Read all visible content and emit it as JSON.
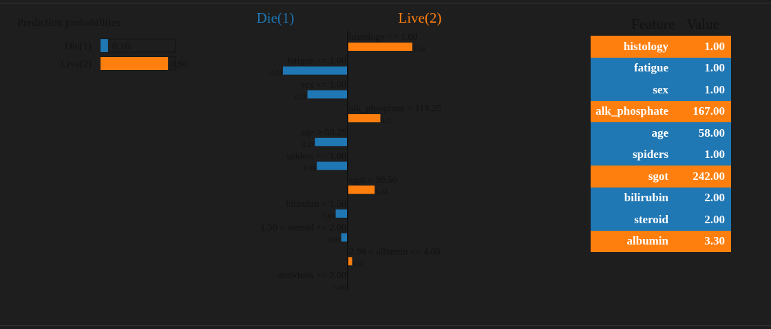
{
  "colors": {
    "negative": "#1f77b4",
    "positive": "#ff7f0e",
    "background": "#1e1e1e",
    "text_dark": "#111111",
    "text_header_blue": "#1f77b4",
    "text_header_orange": "#ff7f0e"
  },
  "chart_data": [
    {
      "type": "bar",
      "title": "Prediction probabilities",
      "orientation": "horizontal",
      "categories": [
        "Die(1)",
        "Live(2)"
      ],
      "values": [
        0.1,
        0.9
      ],
      "value_labels": [
        "0.10",
        "0.90"
      ],
      "xlim": [
        0,
        1
      ],
      "series_colors": [
        "#1f77b4",
        "#ff7f0e"
      ]
    },
    {
      "type": "bar",
      "orientation": "horizontal",
      "class_labels": {
        "negative": "Die(1)",
        "positive": "Live(2)"
      },
      "bars": [
        {
          "condition": "histology <= 1.00",
          "weight": 0.34,
          "value_label": "0.34",
          "side": "positive"
        },
        {
          "condition": "fatigue <= 1.00",
          "weight": 0.34,
          "value_label": "0.34",
          "side": "negative"
        },
        {
          "condition": "sex <= 1.00",
          "weight": 0.21,
          "value_label": "0.21",
          "side": "negative"
        },
        {
          "condition": "alk_phosphate > 119.25",
          "weight": 0.17,
          "value_label": "0.17",
          "side": "positive"
        },
        {
          "condition": "age > 50.25",
          "weight": 0.17,
          "value_label": "0.17",
          "side": "negative"
        },
        {
          "condition": "spiders <= 1.00",
          "weight": 0.16,
          "value_label": "0.16",
          "side": "negative"
        },
        {
          "condition": "sgot > 90.50",
          "weight": 0.14,
          "value_label": "0.14",
          "side": "positive"
        },
        {
          "condition": "bilirubin > 1.50",
          "weight": 0.06,
          "value_label": "0.06",
          "side": "negative"
        },
        {
          "condition": "1.50 < steroid <= 2.00",
          "weight": 0.03,
          "value_label": "0.03",
          "side": "negative"
        },
        {
          "condition": "2.98 < albumin <= 4.00",
          "weight": 0.02,
          "value_label": "0.02",
          "side": "positive"
        },
        {
          "condition": "antivirals <= 2.00",
          "weight": 0.0,
          "value_label": "0.00",
          "side": "negative"
        }
      ]
    },
    {
      "type": "table",
      "columns": [
        "Feature",
        "Value"
      ],
      "rows": [
        {
          "feature": "histology",
          "value": "1.00",
          "side": "positive"
        },
        {
          "feature": "fatigue",
          "value": "1.00",
          "side": "negative"
        },
        {
          "feature": "sex",
          "value": "1.00",
          "side": "negative"
        },
        {
          "feature": "alk_phosphate",
          "value": "167.00",
          "side": "positive"
        },
        {
          "feature": "age",
          "value": "58.00",
          "side": "negative"
        },
        {
          "feature": "spiders",
          "value": "1.00",
          "side": "negative"
        },
        {
          "feature": "sgot",
          "value": "242.00",
          "side": "positive"
        },
        {
          "feature": "bilirubin",
          "value": "2.00",
          "side": "negative"
        },
        {
          "feature": "steroid",
          "value": "2.00",
          "side": "negative"
        },
        {
          "feature": "albumin",
          "value": "3.30",
          "side": "positive"
        }
      ]
    }
  ]
}
